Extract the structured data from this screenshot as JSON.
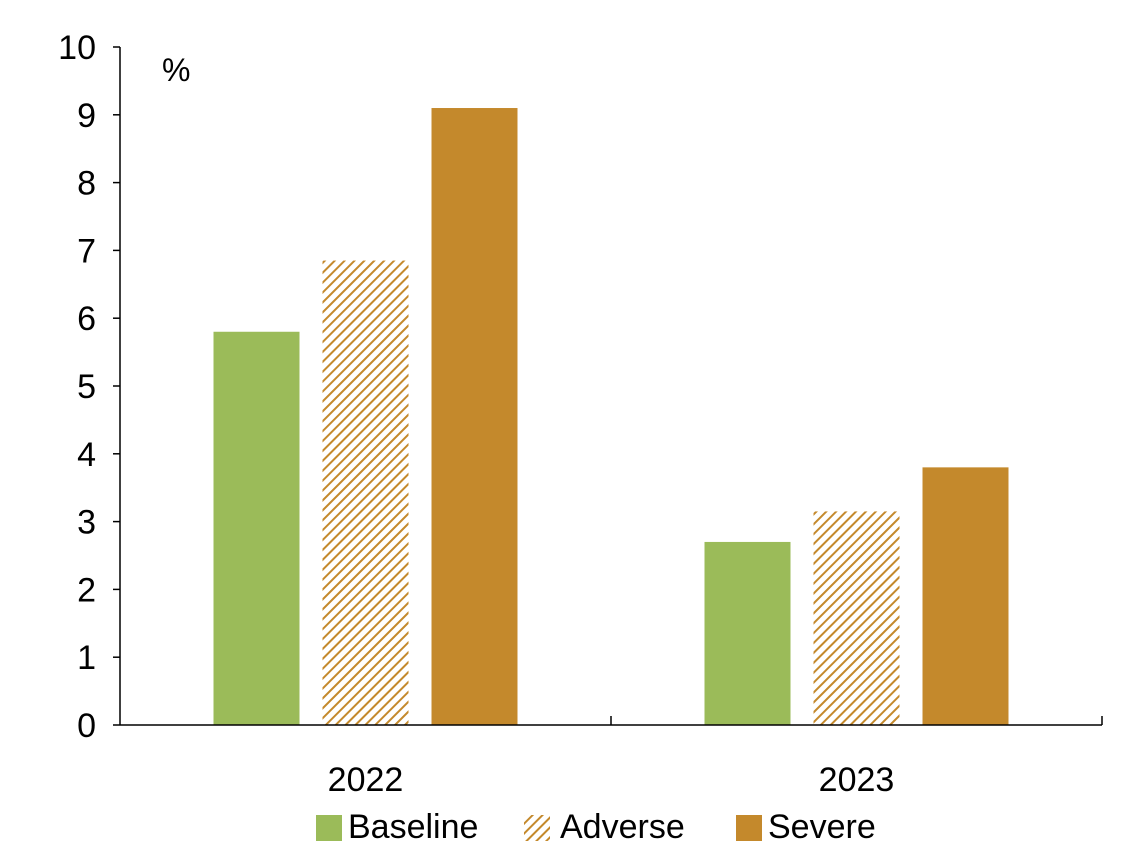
{
  "chart_data": {
    "type": "bar",
    "categories": [
      "2022",
      "2023"
    ],
    "series": [
      {
        "name": "Baseline",
        "values": [
          5.8,
          2.7
        ],
        "color": "#9BBB59",
        "pattern": "solid"
      },
      {
        "name": "Adverse",
        "values": [
          6.85,
          3.15
        ],
        "color": "#C4892C",
        "pattern": "hatched"
      },
      {
        "name": "Severe",
        "values": [
          9.1,
          3.8
        ],
        "color": "#C4892C",
        "pattern": "solid"
      }
    ],
    "yunit": "%",
    "ylim": [
      0,
      10
    ],
    "yticks": [
      "0",
      "1",
      "2",
      "3",
      "4",
      "5",
      "6",
      "7",
      "8",
      "9",
      "10"
    ],
    "grid": false,
    "legend_position": "bottom"
  }
}
